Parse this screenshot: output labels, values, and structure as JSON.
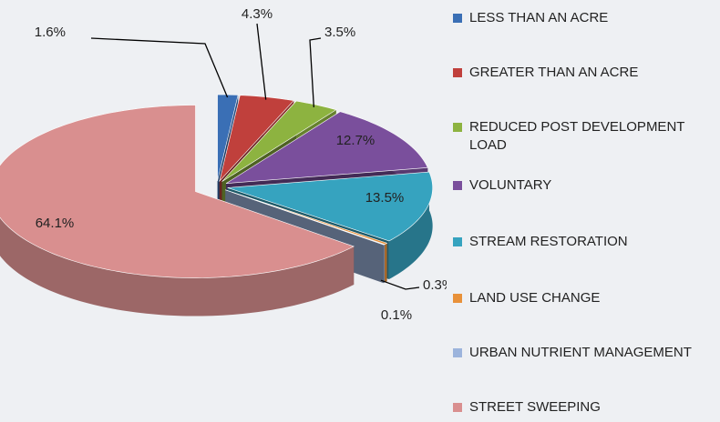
{
  "chart_data": {
    "type": "pie",
    "categories": [
      "LESS THAN AN ACRE",
      "GREATER THAN AN ACRE",
      "REDUCED POST DEVELOPMENT LOAD",
      "VOLUNTARY",
      "STREAM RESTORATION",
      "LAND USE CHANGE",
      "URBAN NUTRIENT MANAGEMENT",
      "STREET SWEEPING"
    ],
    "values": [
      1.6,
      4.3,
      3.5,
      12.7,
      13.5,
      0.3,
      0.1,
      64.1
    ],
    "value_labels": [
      "1.6%",
      "4.3%",
      "3.5%",
      "12.7%",
      "13.5%",
      "0.3%",
      "0.1%",
      "64.1%"
    ],
    "colors": [
      "#3a6fb5",
      "#c0403c",
      "#8db340",
      "#7a4f9c",
      "#36a3bf",
      "#e8913a",
      "#9cb4dc",
      "#d98f8f"
    ],
    "legend": "right"
  }
}
